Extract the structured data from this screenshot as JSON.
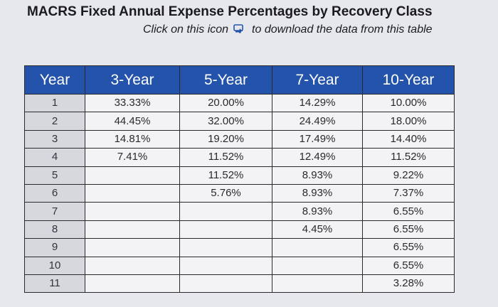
{
  "title": "MACRS Fixed Annual Expense Percentages by Recovery Class",
  "subtitle_before": "Click on this icon",
  "subtitle_after": "to download the data from this table",
  "download_icon": "download-icon",
  "colors": {
    "header_bg": "#2353ab",
    "header_text": "#ffffff",
    "year_bg": "#d6d8de",
    "cell_bg": "#f3f3f5",
    "page_bg": "#e7e8ed"
  },
  "headers": [
    "Year",
    "3-Year",
    "5-Year",
    "7-Year",
    "10-Year"
  ],
  "rows": [
    [
      "1",
      "33.33%",
      "20.00%",
      "14.29%",
      "10.00%"
    ],
    [
      "2",
      "44.45%",
      "32.00%",
      "24.49%",
      "18.00%"
    ],
    [
      "3",
      "14.81%",
      "19.20%",
      "17.49%",
      "14.40%"
    ],
    [
      "4",
      "7.41%",
      "11.52%",
      "12.49%",
      "11.52%"
    ],
    [
      "5",
      "",
      "11.52%",
      "8.93%",
      "9.22%"
    ],
    [
      "6",
      "",
      "5.76%",
      "8.93%",
      "7.37%"
    ],
    [
      "7",
      "",
      "",
      "8.93%",
      "6.55%"
    ],
    [
      "8",
      "",
      "",
      "4.45%",
      "6.55%"
    ],
    [
      "9",
      "",
      "",
      "",
      "6.55%"
    ],
    [
      "10",
      "",
      "",
      "",
      "6.55%"
    ],
    [
      "11",
      "",
      "",
      "",
      "3.28%"
    ]
  ]
}
